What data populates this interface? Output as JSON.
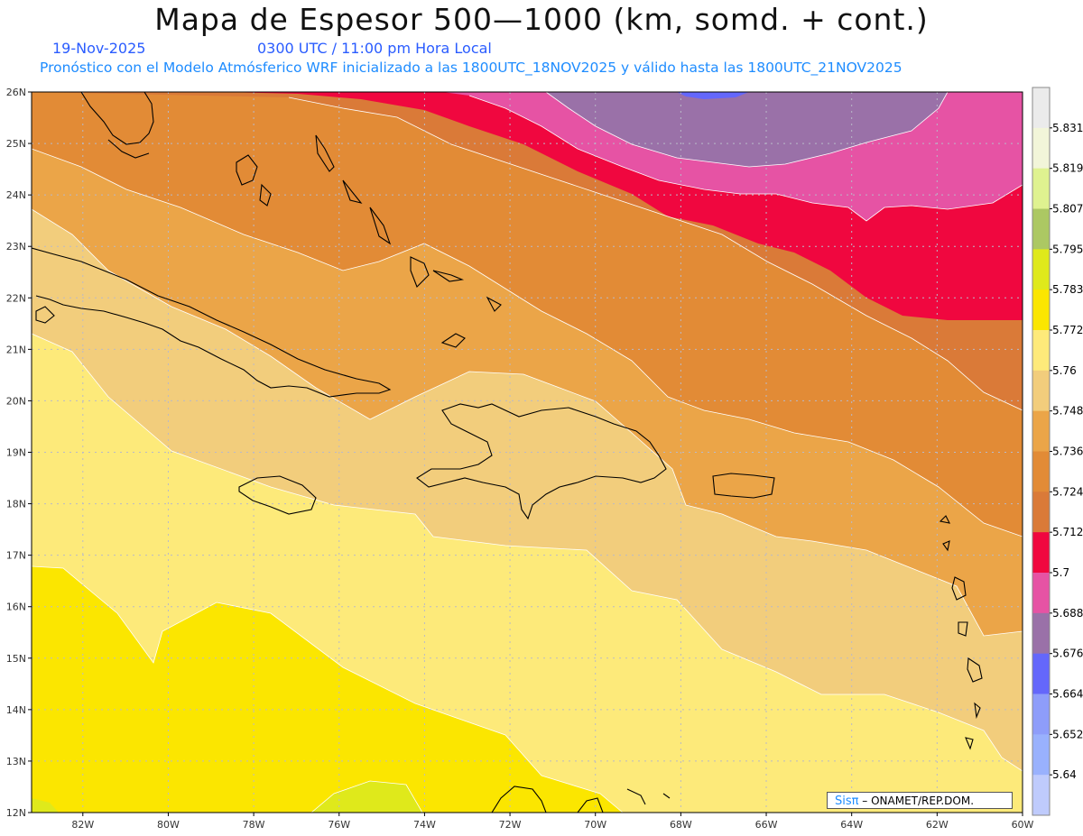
{
  "header": {
    "title": "Mapa de Espesor 500—1000 (km, somd. + cont.)",
    "date": "19-Nov-2025",
    "time": "0300 UTC / 11:00 pm Hora Local",
    "subtitle": "Pronóstico con el Modelo Atmósferico WRF inicializado a las 1800UTC_18NOV2025 y válido hasta las  1800UTC_21NOV2025"
  },
  "axes": {
    "lat_labels": [
      "26N",
      "25N",
      "24N",
      "23N",
      "22N",
      "21N",
      "20N",
      "19N",
      "18N",
      "17N",
      "16N",
      "15N",
      "14N",
      "13N",
      "12N"
    ],
    "lon_labels": [
      "82W",
      "80W",
      "78W",
      "76W",
      "74W",
      "72W",
      "70W",
      "68W",
      "66W",
      "64W",
      "62W",
      "60W"
    ],
    "lat_range": [
      12,
      26
    ],
    "lon_range": [
      -83.2,
      -60
    ]
  },
  "legend": {
    "levels": [
      "5.831",
      "5.819",
      "5.807",
      "5.795",
      "5.783",
      "5.772",
      "5.76",
      "5.748",
      "5.736",
      "5.724",
      "5.712",
      "5.7",
      "5.688",
      "5.676",
      "5.664",
      "5.652",
      "5.64"
    ],
    "colors_top_to_bottom": [
      "#ebebeb",
      "#f2f5d9",
      "#dff290",
      "#acc863",
      "#dfe91b",
      "#fbe600",
      "#feea7a",
      "#f2cd7c",
      "#eba548",
      "#e28b36",
      "#da7a38",
      "#f0073f",
      "#e653a4",
      "#9a71a8",
      "#6467fb",
      "#8e9dfa",
      "#99b1fd",
      "#bfcbfc"
    ]
  },
  "colors": {
    "lvl_5760": "#fdea7a",
    "lvl_5748": "#f2cd7c",
    "lvl_5736": "#eba548",
    "lvl_5724": "#e28b36",
    "lvl_5712": "#da7a38",
    "lvl_5700": "#f0073f",
    "lvl_5688": "#e653a4",
    "lvl_5676": "#9a71a8",
    "lvl_5664": "#6467fb",
    "lvl_5772": "#fbe600",
    "lvl_5783": "#dfe91b"
  },
  "credit": {
    "logo": "Sisπ",
    "text": "–  ONAMET/REP.DOM."
  }
}
